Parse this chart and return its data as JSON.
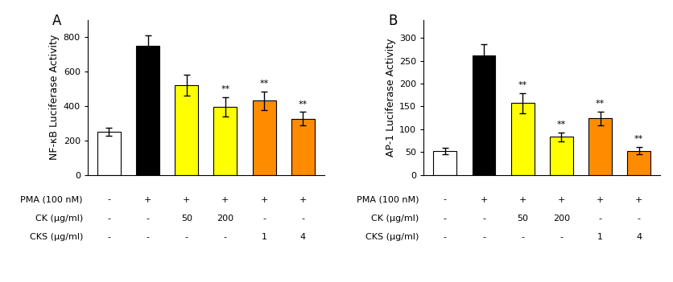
{
  "panel_A": {
    "label": "A",
    "ylabel": "NF-κB Luciferase Activity",
    "ylim": [
      0,
      900
    ],
    "yticks": [
      0,
      200,
      400,
      600,
      800
    ],
    "values": [
      250,
      748,
      520,
      395,
      430,
      325
    ],
    "errors": [
      25,
      60,
      60,
      55,
      55,
      40
    ],
    "colors": [
      "#ffffff",
      "#000000",
      "#ffff00",
      "#ffff00",
      "#ff8c00",
      "#ff8c00"
    ],
    "edge_colors": [
      "#000000",
      "#000000",
      "#000000",
      "#000000",
      "#000000",
      "#000000"
    ],
    "sig_labels": [
      "",
      "",
      "",
      "**",
      "**",
      "**"
    ],
    "row1": [
      "-",
      "+",
      "+",
      "+",
      "+",
      "+"
    ],
    "row2": [
      "-",
      "-",
      "50",
      "200",
      "-",
      "-"
    ],
    "row3": [
      "-",
      "-",
      "-",
      "-",
      "1",
      "4"
    ],
    "row1_label": "PMA (100 nM)",
    "row2_label": "CK (μg/ml)",
    "row3_label": "CKS (μg/ml)"
  },
  "panel_B": {
    "label": "B",
    "ylabel": "AP-1 Luciferase Activity",
    "ylim": [
      0,
      340
    ],
    "yticks": [
      0,
      50,
      100,
      150,
      200,
      250,
      300
    ],
    "values": [
      53,
      262,
      157,
      83,
      124,
      53
    ],
    "errors": [
      7,
      25,
      22,
      10,
      15,
      8
    ],
    "colors": [
      "#ffffff",
      "#000000",
      "#ffff00",
      "#ffff00",
      "#ff8c00",
      "#ff8c00"
    ],
    "edge_colors": [
      "#000000",
      "#000000",
      "#000000",
      "#000000",
      "#000000",
      "#000000"
    ],
    "sig_labels": [
      "",
      "",
      "**",
      "**",
      "**",
      "**"
    ],
    "row1": [
      "-",
      "+",
      "+",
      "+",
      "+",
      "+"
    ],
    "row2": [
      "-",
      "-",
      "50",
      "200",
      "-",
      "-"
    ],
    "row3": [
      "-",
      "-",
      "-",
      "-",
      "1",
      "4"
    ],
    "row1_label": "PMA (100 nM)",
    "row2_label": "CK (μg/ml)",
    "row3_label": "CKS (μg/ml)"
  },
  "bar_width": 0.6,
  "figsize": [
    8.37,
    3.51
  ],
  "dpi": 100,
  "sig_fontsize": 8,
  "ylabel_fontsize": 9,
  "tick_fontsize": 8,
  "table_fontsize": 8,
  "panel_label_fontsize": 12
}
